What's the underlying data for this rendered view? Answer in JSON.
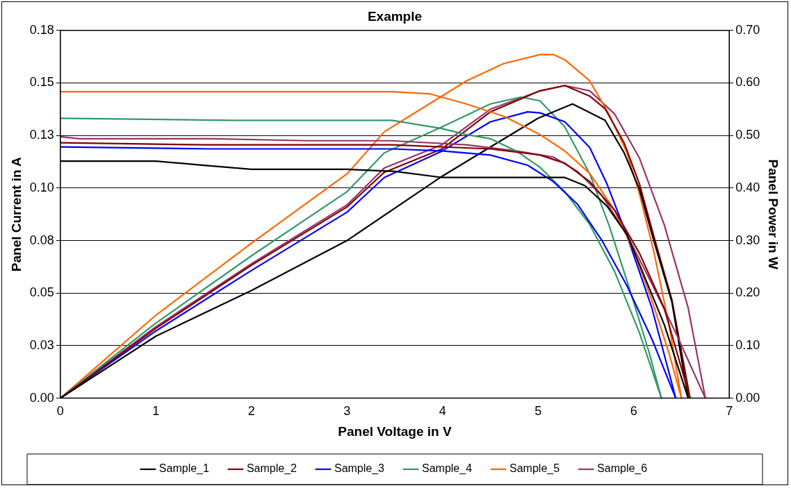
{
  "chart_data": {
    "type": "line",
    "title": "Example",
    "xlabel": "Panel Voltage in V",
    "ylabel": "Panel Current in A",
    "y2label": "Panel Power in W",
    "xlim": [
      0,
      7
    ],
    "xticks": [
      0,
      1,
      2,
      3,
      4,
      5,
      6,
      7
    ],
    "ylim": [
      0,
      0.18
    ],
    "yticks": [
      {
        "value": 0,
        "label": "0.00"
      },
      {
        "value": 0.0257,
        "label": "0.03"
      },
      {
        "value": 0.0514,
        "label": "0.05"
      },
      {
        "value": 0.0771,
        "label": "0.08"
      },
      {
        "value": 0.1029,
        "label": "0.10"
      },
      {
        "value": 0.1286,
        "label": "0.13"
      },
      {
        "value": 0.1543,
        "label": "0.15"
      },
      {
        "value": 0.18,
        "label": "0.18"
      }
    ],
    "y2lim": [
      0,
      0.7
    ],
    "y2ticks": [
      {
        "value": 0,
        "label": "0.00"
      },
      {
        "value": 0.1,
        "label": "0.10"
      },
      {
        "value": 0.2,
        "label": "0.20"
      },
      {
        "value": 0.3,
        "label": "0.30"
      },
      {
        "value": 0.4,
        "label": "0.40"
      },
      {
        "value": 0.5,
        "label": "0.50"
      },
      {
        "value": 0.6,
        "label": "0.60"
      },
      {
        "value": 0.7,
        "label": "0.70"
      }
    ],
    "grid": "y",
    "legend": "bottom",
    "marker": "none",
    "line_style": "solid",
    "series": [
      {
        "name": "Sample_1",
        "color": "#000000",
        "x": [
          0,
          1,
          1.5,
          2,
          3,
          3.5,
          4,
          5,
          5.28,
          5.49,
          5.72,
          5.93,
          6.1,
          6.32,
          6.57
        ],
        "values": [
          0.116,
          0.116,
          0.114,
          0.112,
          0.112,
          0.111,
          0.108,
          0.108,
          0.108,
          0.104,
          0.094,
          0.08,
          0.061,
          0.036,
          0
        ]
      },
      {
        "name": "Sample_2",
        "color": "#800000",
        "x": [
          0,
          1.5,
          3,
          3.47,
          4.5,
          5.02,
          5.28,
          5.54,
          5.8,
          6.06,
          6.32,
          6.59
        ],
        "values": [
          0.125,
          0.124,
          0.124,
          0.124,
          0.122,
          0.119,
          0.115,
          0.106,
          0.092,
          0.071,
          0.044,
          0
        ]
      },
      {
        "name": "Sample_3",
        "color": "#0000ff",
        "x": [
          0,
          1.6,
          3.47,
          3.99,
          4.5,
          4.89,
          5.16,
          5.41,
          5.67,
          5.93,
          6.19,
          6.44
        ],
        "values": [
          0.123,
          0.122,
          0.122,
          0.121,
          0.119,
          0.114,
          0.106,
          0.095,
          0.077,
          0.055,
          0.029,
          0
        ]
      },
      {
        "name": "Sample_4",
        "color": "#339966",
        "x": [
          0,
          1.8,
          3.47,
          3.99,
          4.25,
          4.5,
          4.77,
          5.02,
          5.28,
          5.54,
          5.8,
          6.06,
          6.29
        ],
        "values": [
          0.137,
          0.136,
          0.136,
          0.132,
          0.129,
          0.127,
          0.121,
          0.113,
          0.101,
          0.085,
          0.062,
          0.032,
          0
        ]
      },
      {
        "name": "Sample_5",
        "color": "#ff6600",
        "x": [
          0,
          1.6,
          3.47,
          3.86,
          4.25,
          4.64,
          5.02,
          5.28,
          5.54,
          5.8,
          6.0,
          6.19,
          6.37,
          6.5
        ],
        "values": [
          0.15,
          0.15,
          0.15,
          0.149,
          0.144,
          0.138,
          0.129,
          0.121,
          0.11,
          0.092,
          0.072,
          0.048,
          0.022,
          0
        ]
      },
      {
        "name": "Sample_6",
        "color": "#993366",
        "x": [
          0,
          0.2,
          1.6,
          2.6,
          3.47,
          4.25,
          4.77,
          5.16,
          5.41,
          5.67,
          5.93,
          6.19,
          6.44,
          6.75
        ],
        "values": [
          0.128,
          0.127,
          0.127,
          0.126,
          0.126,
          0.124,
          0.121,
          0.118,
          0.111,
          0.099,
          0.08,
          0.056,
          0.032,
          0
        ]
      },
      {
        "color": "#000000",
        "axis": "y2",
        "x": [
          0,
          1,
          2,
          3,
          4,
          5,
          5.36,
          5.7,
          5.9,
          6.06,
          6.21,
          6.4,
          6.57
        ],
        "values": [
          0,
          0.118,
          0.205,
          0.3,
          0.423,
          0.533,
          0.56,
          0.529,
          0.467,
          0.398,
          0.3,
          0.183,
          0
        ]
      },
      {
        "color": "#800000",
        "axis": "y2",
        "x": [
          0,
          1,
          2,
          3,
          3.39,
          3.99,
          4.5,
          5.02,
          5.28,
          5.54,
          5.7,
          5.9,
          6.06,
          6.21,
          6.4,
          6.59
        ],
        "values": [
          0,
          0.133,
          0.253,
          0.364,
          0.43,
          0.474,
          0.545,
          0.585,
          0.595,
          0.575,
          0.551,
          0.486,
          0.408,
          0.309,
          0.187,
          0
        ]
      },
      {
        "color": "#0000ff",
        "axis": "y2",
        "x": [
          0,
          1,
          2,
          3,
          3.39,
          3.99,
          4.5,
          4.89,
          5.02,
          5.28,
          5.54,
          5.72,
          5.93,
          6.19,
          6.44
        ],
        "values": [
          0,
          0.128,
          0.243,
          0.354,
          0.42,
          0.47,
          0.526,
          0.545,
          0.543,
          0.526,
          0.477,
          0.408,
          0.309,
          0.172,
          0
        ]
      },
      {
        "color": "#339966",
        "axis": "y2",
        "x": [
          0,
          1,
          2,
          3,
          3.39,
          3.99,
          4.5,
          4.82,
          5.02,
          5.28,
          5.54,
          5.74,
          5.95,
          6.16,
          6.29
        ],
        "values": [
          0,
          0.143,
          0.271,
          0.393,
          0.467,
          0.516,
          0.56,
          0.573,
          0.566,
          0.516,
          0.427,
          0.33,
          0.212,
          0.088,
          0
        ]
      },
      {
        "color": "#ff6600",
        "axis": "y2",
        "x": [
          0,
          1,
          2,
          3,
          3.39,
          3.86,
          4.25,
          4.64,
          5.02,
          5.16,
          5.28,
          5.54,
          5.74,
          5.93,
          6.06,
          6.21,
          6.37,
          6.5
        ],
        "values": [
          0,
          0.158,
          0.295,
          0.427,
          0.507,
          0.56,
          0.604,
          0.637,
          0.654,
          0.654,
          0.644,
          0.604,
          0.541,
          0.467,
          0.389,
          0.28,
          0.139,
          0
        ]
      },
      {
        "color": "#993366",
        "axis": "y2",
        "x": [
          0,
          1,
          2,
          3,
          3.39,
          3.99,
          4.5,
          5.02,
          5.28,
          5.54,
          5.8,
          6.06,
          6.32,
          6.57,
          6.75
        ],
        "values": [
          0,
          0.136,
          0.256,
          0.368,
          0.438,
          0.482,
          0.55,
          0.585,
          0.595,
          0.585,
          0.541,
          0.457,
          0.33,
          0.172,
          0
        ]
      }
    ]
  }
}
